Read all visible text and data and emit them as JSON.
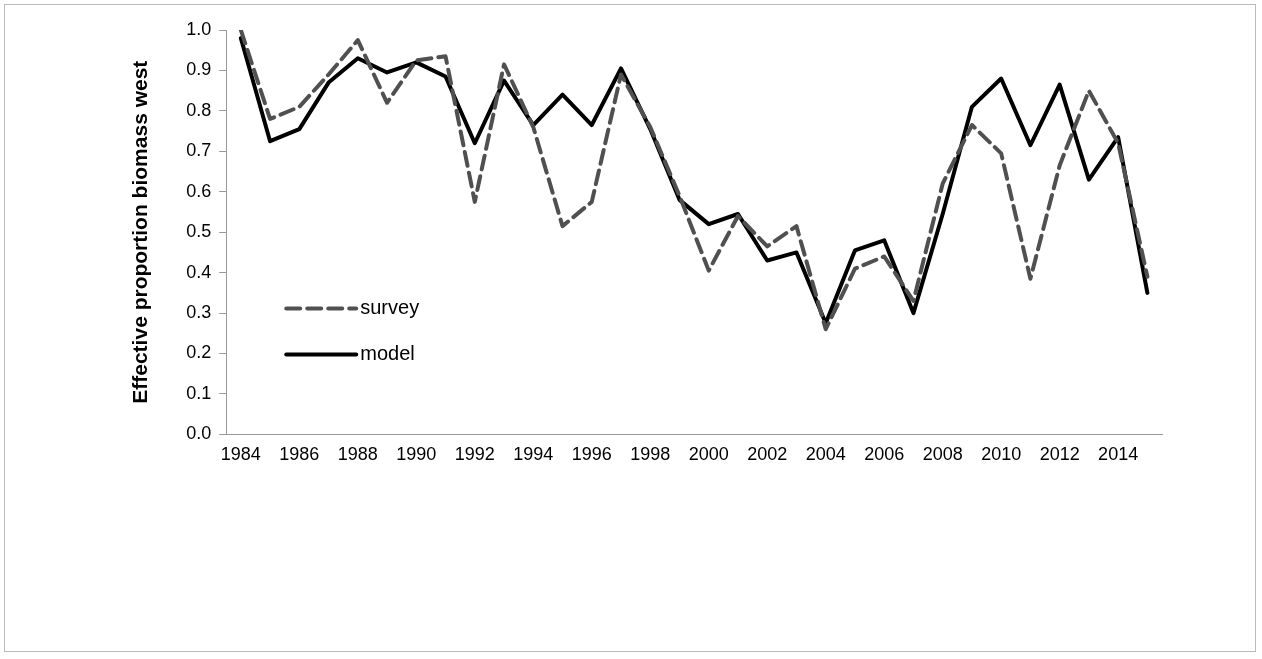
{
  "chart_data": {
    "type": "line",
    "ylabel": "Effective proportion biomass west",
    "categories": [
      "1984",
      null,
      "1986",
      null,
      "1988",
      null,
      "1990",
      null,
      "1992",
      null,
      "1994",
      null,
      "1996",
      null,
      "1998",
      null,
      "2000",
      null,
      "2002",
      null,
      "2004",
      null,
      "2006",
      null,
      "2008",
      null,
      "2010",
      null,
      "2012",
      null,
      "2014",
      null
    ],
    "series": [
      {
        "name": "survey",
        "color": "#505050",
        "line_style": "dashed",
        "values": [
          1.0,
          0.78,
          0.81,
          0.89,
          0.975,
          0.82,
          0.925,
          0.935,
          0.575,
          0.915,
          0.76,
          0.515,
          0.575,
          0.89,
          0.76,
          0.59,
          0.405,
          0.54,
          0.465,
          0.515,
          0.26,
          0.41,
          0.44,
          0.33,
          0.62,
          0.765,
          0.695,
          0.385,
          0.665,
          0.85,
          0.72,
          0.39
        ]
      },
      {
        "name": "model",
        "color": "#000000",
        "line_style": "solid",
        "values": [
          0.98,
          0.725,
          0.755,
          0.87,
          0.93,
          0.895,
          0.92,
          0.885,
          0.72,
          0.875,
          0.765,
          0.84,
          0.765,
          0.905,
          0.755,
          0.58,
          0.52,
          0.545,
          0.43,
          0.45,
          0.275,
          0.455,
          0.48,
          0.3,
          0.545,
          0.81,
          0.88,
          0.715,
          0.865,
          0.63,
          0.735,
          0.35
        ]
      }
    ],
    "ylim": [
      0,
      1
    ],
    "yticks": [
      {
        "value": 0,
        "label": "0.0"
      },
      0.1,
      0.2,
      0.3,
      0.4,
      0.5,
      0.6,
      0.7,
      0.8,
      0.9,
      {
        "value": 1,
        "label": "1.0"
      }
    ],
    "grid": false,
    "legend": "bottom left",
    "marker": "none"
  }
}
